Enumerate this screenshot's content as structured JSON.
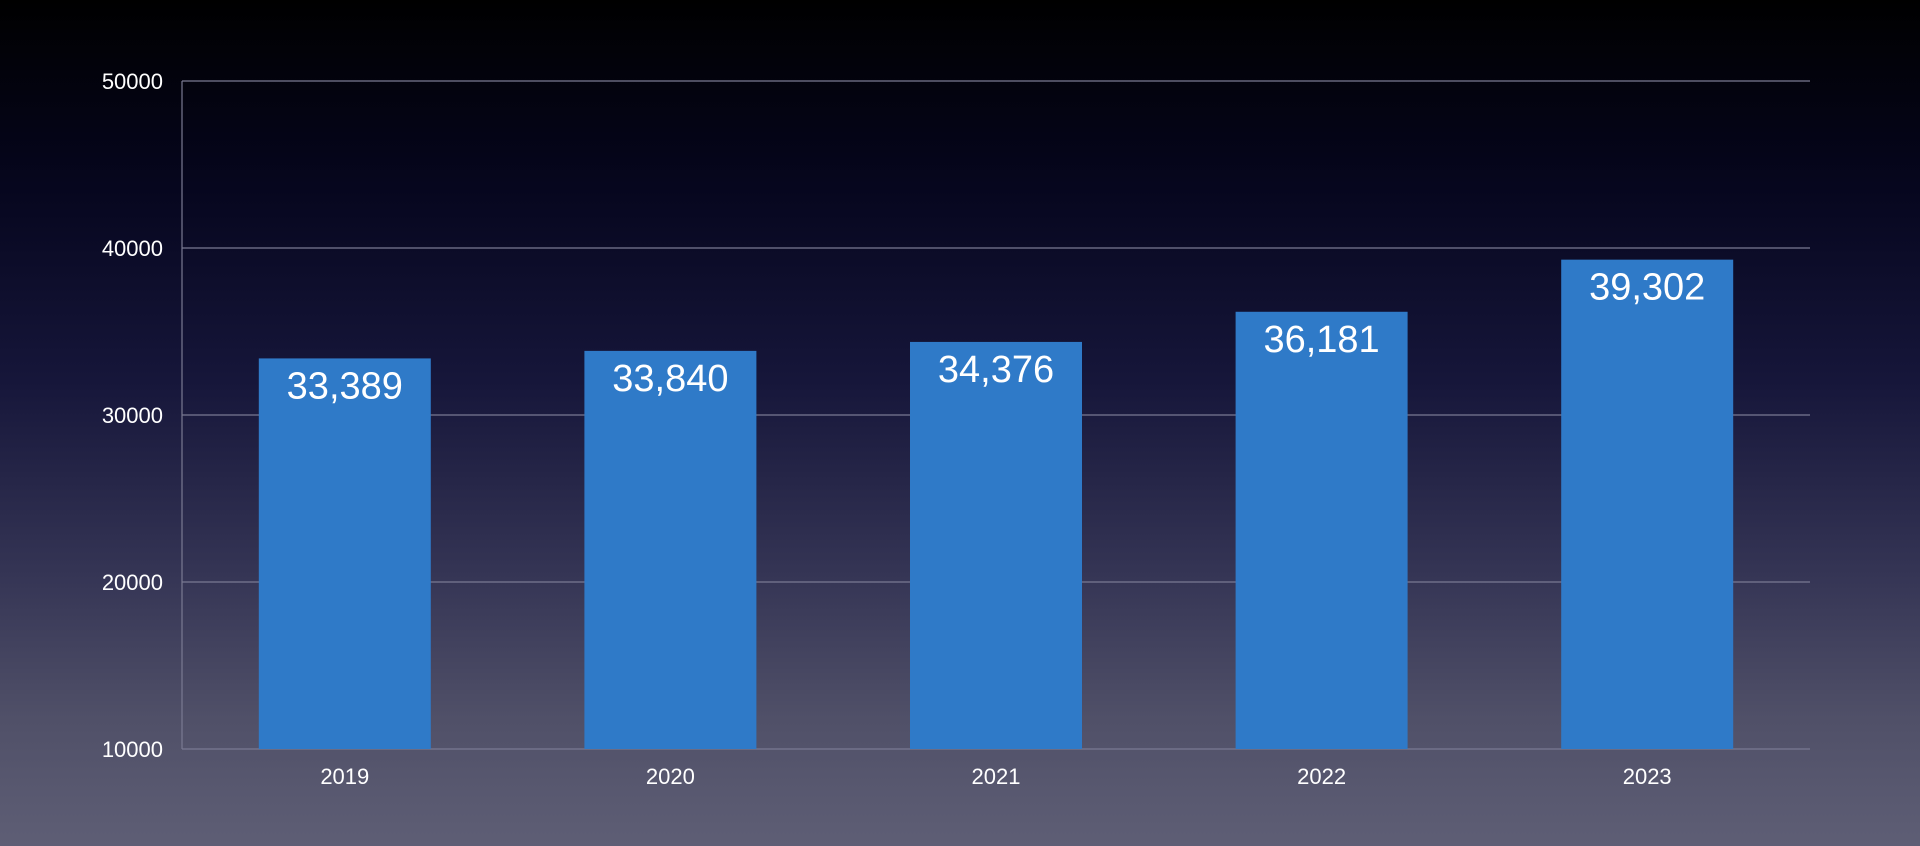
{
  "chart_data": {
    "type": "bar",
    "categories": [
      "2019",
      "2020",
      "2021",
      "2022",
      "2023"
    ],
    "values": [
      33389,
      33840,
      34376,
      36181,
      39302
    ],
    "value_labels": [
      "33,389",
      "33,840",
      "34,376",
      "36,181",
      "39,302"
    ],
    "y_ticks": [
      "10000",
      "20000",
      "30000",
      "40000",
      "50000"
    ],
    "ylim": [
      10000,
      50000
    ],
    "grid": "horizontal",
    "legend": "none",
    "colors": {
      "bar": "#2f7ac8",
      "grid": "#7a7a92",
      "text": "#ffffff"
    }
  }
}
